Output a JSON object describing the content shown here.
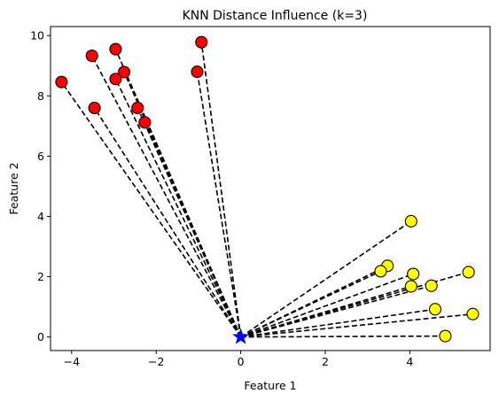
{
  "chart_data": {
    "type": "scatter",
    "title": "KNN Distance Influence (k=3)",
    "xlabel": "Feature 1",
    "ylabel": "Feature 2",
    "xlim": [
      -4.5,
      5.9
    ],
    "ylim": [
      -0.45,
      10.3
    ],
    "xticks": [
      -4,
      -2,
      0,
      2,
      4
    ],
    "yticks": [
      0,
      2,
      4,
      6,
      8,
      10
    ],
    "grid": false,
    "line_style": "black dashed",
    "series": [
      {
        "color": "#ff0000",
        "points": [
          {
            "x": -0.93,
            "y": 9.78
          },
          {
            "x": -2.96,
            "y": 9.55
          },
          {
            "x": -3.52,
            "y": 9.33
          },
          {
            "x": -1.03,
            "y": 8.8
          },
          {
            "x": -2.76,
            "y": 8.79
          },
          {
            "x": -2.96,
            "y": 8.56
          },
          {
            "x": -4.24,
            "y": 8.46
          },
          {
            "x": -3.46,
            "y": 7.6
          },
          {
            "x": -2.44,
            "y": 7.6
          },
          {
            "x": -2.27,
            "y": 7.12
          }
        ]
      },
      {
        "color": "#ffff00",
        "points": [
          {
            "x": 4.03,
            "y": 3.84
          },
          {
            "x": 3.47,
            "y": 2.36
          },
          {
            "x": 3.31,
            "y": 2.18
          },
          {
            "x": 5.39,
            "y": 2.15
          },
          {
            "x": 4.08,
            "y": 2.09
          },
          {
            "x": 4.51,
            "y": 1.7
          },
          {
            "x": 4.03,
            "y": 1.68
          },
          {
            "x": 4.6,
            "y": 0.92
          },
          {
            "x": 5.49,
            "y": 0.76
          },
          {
            "x": 4.84,
            "y": 0.03
          }
        ]
      }
    ],
    "query_point": {
      "x": 0,
      "y": 0,
      "color": "#0000ff",
      "marker": "star"
    }
  }
}
